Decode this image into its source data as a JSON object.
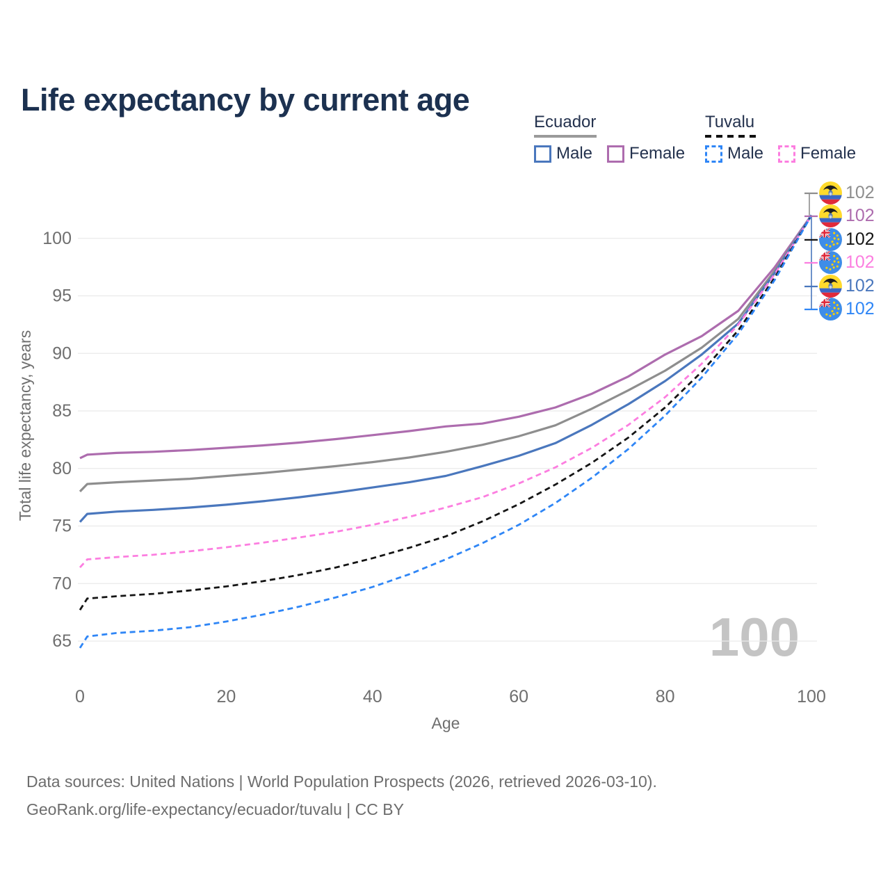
{
  "title": "Life expectancy by current age",
  "legend": {
    "groups": [
      {
        "country": "Ecuador",
        "line_style": "solid",
        "swatch_color": "#9a9a9a",
        "items": [
          {
            "label": "Male",
            "color": "#4a77bd"
          },
          {
            "label": "Female",
            "color": "#ad6cae"
          }
        ]
      },
      {
        "country": "Tuvalu",
        "line_style": "dashed",
        "swatch_color": "#151515",
        "items": [
          {
            "label": "Male",
            "color": "#2f86f6"
          },
          {
            "label": "Female",
            "color": "#fc7ee0"
          }
        ]
      }
    ]
  },
  "chart_data": {
    "type": "line",
    "title": "Life expectancy by current age",
    "xlabel": "Age",
    "ylabel": "Total life expectancy, years",
    "xlim": [
      0,
      100
    ],
    "ylim": [
      63,
      103
    ],
    "xticks": [
      0,
      20,
      40,
      60,
      80,
      100
    ],
    "yticks": [
      65,
      70,
      75,
      80,
      85,
      90,
      95,
      100
    ],
    "grid": "horizontal",
    "legend_position": "top-right",
    "watermark": "100",
    "x": [
      0,
      1,
      5,
      10,
      15,
      20,
      25,
      30,
      35,
      40,
      45,
      50,
      55,
      60,
      65,
      70,
      75,
      80,
      85,
      90,
      95,
      100
    ],
    "series": [
      {
        "name": "Ecuador Female",
        "country": "Ecuador",
        "sex": "Female",
        "color": "#ad6cae",
        "dash": false,
        "values": [
          80.9,
          81.2,
          81.35,
          81.45,
          81.6,
          81.8,
          82.0,
          82.25,
          82.55,
          82.9,
          83.25,
          83.65,
          83.9,
          84.5,
          85.3,
          86.5,
          88.0,
          89.9,
          91.5,
          93.7,
          97.5,
          102
        ]
      },
      {
        "name": "Ecuador Both",
        "country": "Ecuador",
        "sex": "Both",
        "color": "#8e8e8e",
        "dash": false,
        "values": [
          78.0,
          78.65,
          78.8,
          78.95,
          79.1,
          79.35,
          79.6,
          79.9,
          80.2,
          80.55,
          80.95,
          81.45,
          82.05,
          82.8,
          83.75,
          85.2,
          86.8,
          88.5,
          90.5,
          93.0,
          97.2,
          102
        ]
      },
      {
        "name": "Ecuador Male",
        "country": "Ecuador",
        "sex": "Male",
        "color": "#4a77bd",
        "dash": false,
        "values": [
          75.35,
          76.05,
          76.25,
          76.4,
          76.6,
          76.85,
          77.15,
          77.5,
          77.9,
          78.35,
          78.8,
          79.35,
          80.2,
          81.1,
          82.2,
          83.8,
          85.6,
          87.6,
          89.9,
          92.6,
          97.0,
          102
        ]
      },
      {
        "name": "Tuvalu Female",
        "country": "Tuvalu",
        "sex": "Female",
        "color": "#fc7ee0",
        "dash": true,
        "values": [
          71.4,
          72.1,
          72.3,
          72.5,
          72.8,
          73.15,
          73.55,
          74.0,
          74.5,
          75.1,
          75.8,
          76.6,
          77.5,
          78.7,
          80.1,
          81.8,
          83.8,
          86.2,
          89.1,
          92.5,
          96.9,
          102
        ]
      },
      {
        "name": "Tuvalu Both",
        "country": "Tuvalu",
        "sex": "Both",
        "color": "#151515",
        "dash": true,
        "values": [
          67.7,
          68.7,
          68.9,
          69.1,
          69.4,
          69.75,
          70.2,
          70.75,
          71.4,
          72.2,
          73.1,
          74.1,
          75.4,
          76.9,
          78.6,
          80.5,
          82.7,
          85.3,
          88.4,
          92.0,
          96.6,
          102
        ]
      },
      {
        "name": "Tuvalu Male",
        "country": "Tuvalu",
        "sex": "Male",
        "color": "#2f86f6",
        "dash": true,
        "values": [
          64.4,
          65.4,
          65.7,
          65.9,
          66.2,
          66.7,
          67.3,
          68.0,
          68.8,
          69.7,
          70.8,
          72.1,
          73.5,
          75.1,
          77.0,
          79.2,
          81.7,
          84.6,
          87.9,
          91.7,
          96.4,
          102
        ]
      }
    ]
  },
  "end_labels": [
    {
      "value": "102",
      "series": "Ecuador Both",
      "flag": "ecuador",
      "color": "#8e8e8e"
    },
    {
      "value": "102",
      "series": "Ecuador Female",
      "flag": "ecuador",
      "color": "#ad6cae"
    },
    {
      "value": "102",
      "series": "Tuvalu Both",
      "flag": "tuvalu",
      "color": "#151515"
    },
    {
      "value": "102",
      "series": "Tuvalu Female",
      "flag": "tuvalu",
      "color": "#fc7ee0"
    },
    {
      "value": "102",
      "series": "Ecuador Male",
      "flag": "ecuador",
      "color": "#4a77bd"
    },
    {
      "value": "102",
      "series": "Tuvalu Male",
      "flag": "tuvalu",
      "color": "#2f86f6"
    }
  ],
  "colors": {
    "title": "#1c3150",
    "tick_text": "#6f6f6f",
    "grid": "#eaeaea",
    "watermark": "#c4c4c4",
    "footer_text": "#6d6d6d"
  },
  "footer": {
    "line1": "Data sources: United Nations | World Population Prospects (2026, retrieved 2026-03-10).",
    "line2": "GeoRank.org/life-expectancy/ecuador/tuvalu | CC BY"
  }
}
